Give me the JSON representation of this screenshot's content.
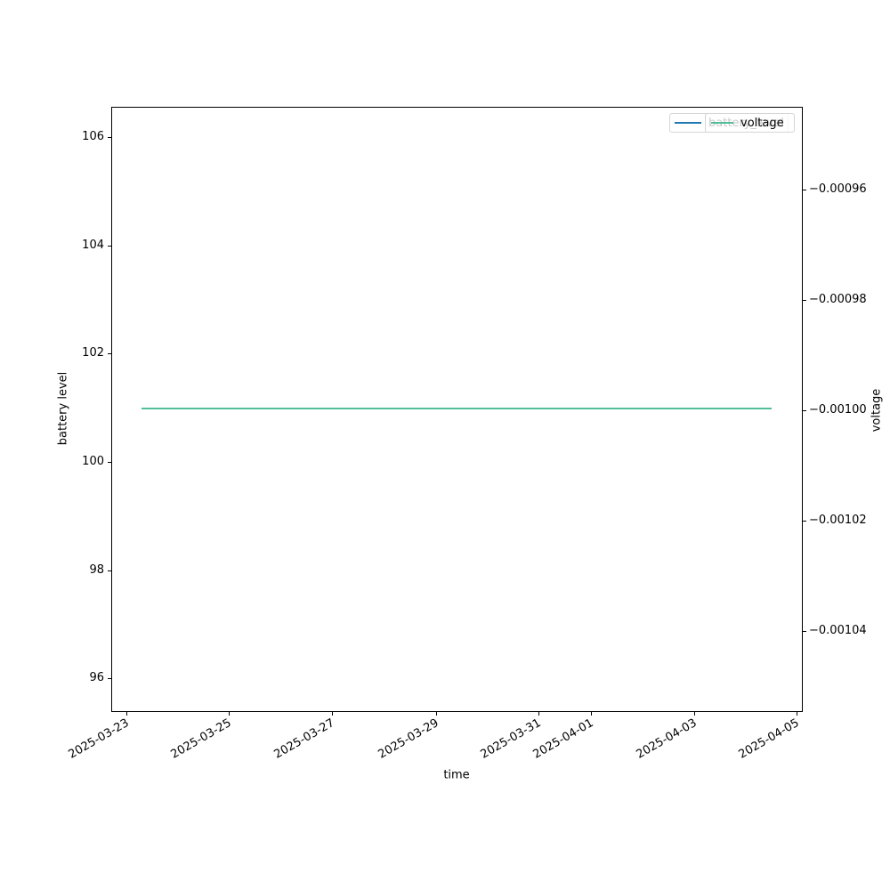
{
  "figure": {
    "xlabel": "time",
    "ylabel_left": "battery level",
    "ylabel_right": "voltage"
  },
  "legend": {
    "battery": {
      "label": "battery_level",
      "color": "#1f77b4"
    },
    "voltage": {
      "label": "voltage",
      "color": "#52be98"
    }
  },
  "axes": {
    "y_left_ticklabels": [
      "106",
      "104",
      "102",
      "100",
      "98",
      "96"
    ],
    "y_right_ticklabels": [
      "−0.00096",
      "−0.00098",
      "−0.00100",
      "−0.00102",
      "−0.00104"
    ],
    "x_ticklabels": [
      "2025-03-23",
      "2025-03-25",
      "2025-03-27",
      "2025-03-29",
      "2025-03-31",
      "2025-04-01",
      "2025-04-03",
      "2025-04-05"
    ]
  },
  "chart_data": {
    "type": "line",
    "title": "",
    "xlabel": "time",
    "ylabel": "battery level",
    "ylabel_right": "voltage",
    "x_tick_labels": [
      "2025-03-23",
      "2025-03-25",
      "2025-03-27",
      "2025-03-29",
      "2025-03-31",
      "2025-04-01",
      "2025-04-03",
      "2025-04-05"
    ],
    "y_left_ticks": [
      96,
      98,
      100,
      102,
      104,
      106
    ],
    "y_right_ticks": [
      -0.00096,
      -0.00098,
      -0.001,
      -0.00102,
      -0.00104
    ],
    "ylim_left": [
      95.4,
      106.6
    ],
    "ylim_right": [
      -0.001055,
      -0.000945
    ],
    "xlim": [
      "2025-03-22 17:00",
      "2025-04-05 03:00"
    ],
    "grid": false,
    "legend_position": "upper right",
    "legend_note": "two overlapping legend boxes in upper right; 'voltage' legend drawn on top of semi-transparent 'battery_level' legend",
    "series": [
      {
        "name": "battery_level",
        "y_axis": "left",
        "color": "#1f77b4",
        "x_start": "2025-03-23 07:00",
        "x_end": "2025-04-04 12:00",
        "constant_value": 101,
        "note": "flat line completely hidden beneath the voltage line"
      },
      {
        "name": "voltage",
        "y_axis": "right",
        "color": "#52be98",
        "x_start": "2025-03-23 07:00",
        "x_end": "2025-04-04 12:00",
        "constant_value": -0.001,
        "note": "visible flat green line"
      }
    ]
  }
}
